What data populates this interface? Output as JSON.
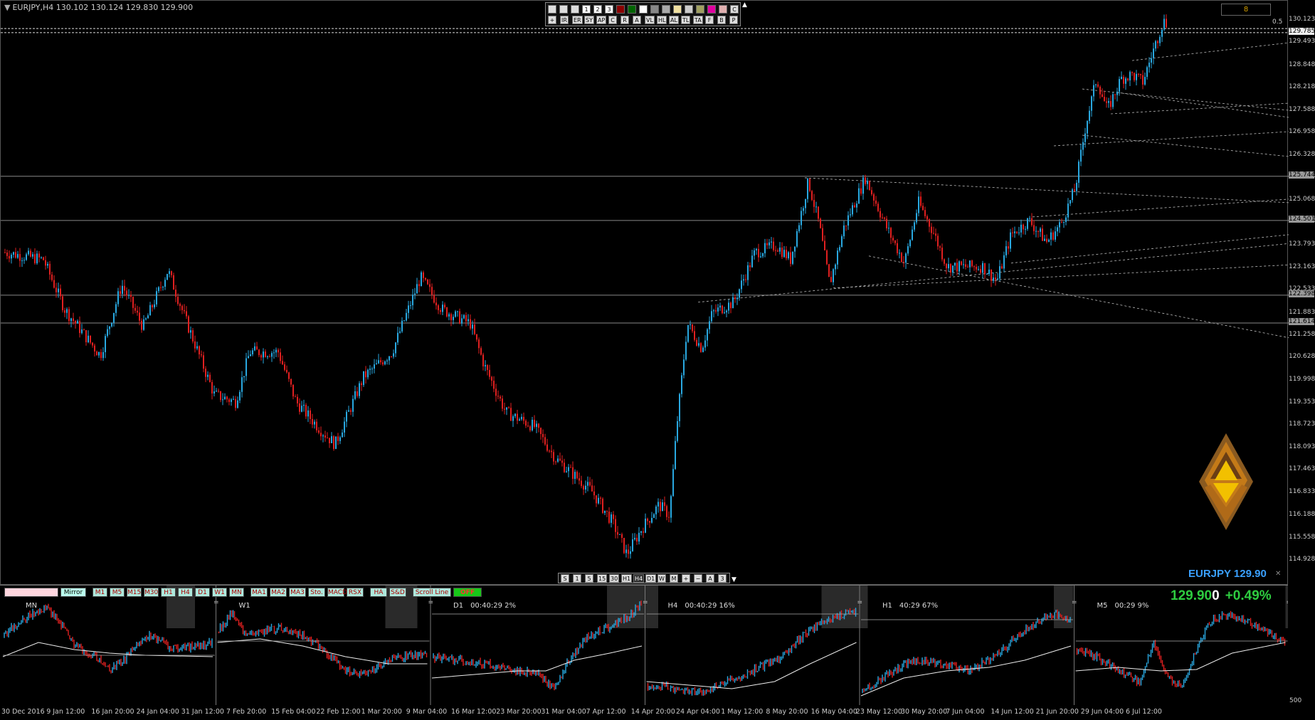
{
  "symbol_info": "EURJPY,H4  130.102 130.124 129.830 129.900",
  "top_toolbar": {
    "row1": [
      "",
      "",
      "",
      "1",
      "2",
      "3",
      "",
      "",
      "",
      "",
      "",
      "",
      "",
      "",
      "",
      "",
      "C"
    ],
    "row2": [
      "+",
      "IR",
      "ER",
      "SY",
      "AP",
      "C",
      "R",
      "A",
      "VL",
      "HL",
      "AL",
      "TL",
      "TA",
      "F",
      "B",
      "P"
    ]
  },
  "top_right_box": "8",
  "scale_label": "0.5",
  "price_axis": {
    "ticks": [
      "130.123",
      "129.493",
      "128.848",
      "128.218",
      "127.588",
      "126.958",
      "126.328",
      "125.698",
      "125.068",
      "124.438",
      "123.793",
      "123.163",
      "122.533",
      "121.883",
      "121.258",
      "120.628",
      "119.998",
      "119.353",
      "118.723",
      "118.093",
      "117.463",
      "116.833",
      "116.188",
      "115.558",
      "114.928"
    ],
    "boxed_levels": [
      "129.785",
      "125.744",
      "124.501",
      "122.398",
      "121.614"
    ]
  },
  "bottom_toolbar": [
    "S",
    "1",
    "5",
    "15",
    "30",
    "H1",
    "H4",
    "D1",
    "W",
    "M",
    "+",
    "−",
    "A",
    "3"
  ],
  "symbol_price_label": "EURJPY 129.90",
  "controls": {
    "mirror": "Mirror",
    "timeframes": [
      "M1",
      "M5",
      "M15",
      "M30",
      "H1",
      "H4",
      "D1",
      "W1",
      "MN"
    ],
    "indicators": [
      "MA1",
      "MA2",
      "MA3",
      "Sto.",
      "MACD",
      "RSX"
    ],
    "extras": [
      "HA",
      "S&D"
    ],
    "scroll_line": "Scroll Line",
    "off": "OFF"
  },
  "big_price": {
    "main": "129.90",
    "last_digit": "0",
    "change": "+0.49%"
  },
  "mini_panels": [
    {
      "tf": "MN",
      "info": ""
    },
    {
      "tf": "W1",
      "info": ""
    },
    {
      "tf": "D1",
      "info": "00:40:29  2%"
    },
    {
      "tf": "H4",
      "info": "00:40:29  16%"
    },
    {
      "tf": "H1",
      "info": "40:29  67%"
    },
    {
      "tf": "M5",
      "info": "00:29  9%"
    }
  ],
  "mini_axis_label": "500",
  "date_axis": [
    "30 Dec 2016",
    "9 Jan 12:00",
    "16 Jan 20:00",
    "24 Jan 04:00",
    "31 Jan 12:00",
    "7 Feb 20:00",
    "15 Feb 04:00",
    "22 Feb 12:00",
    "1 Mar 20:00",
    "9 Mar 04:00",
    "16 Mar 12:00",
    "23 Mar 20:00",
    "31 Mar 04:00",
    "7 Apr 12:00",
    "14 Apr 20:00",
    "24 Apr 04:00",
    "1 May 12:00",
    "8 May 20:00",
    "16 May 04:00",
    "23 May 12:00",
    "30 May 20:00",
    "7 Jun 04:00",
    "14 Jun 12:00",
    "21 Jun 20:00",
    "29 Jun 04:00",
    "6 Jul 12:00"
  ],
  "colors": {
    "bull": "#29a8e0",
    "bear": "#e02020",
    "background": "#000000",
    "grid_line": "#888888",
    "brand_orange": "#d08a10"
  }
}
